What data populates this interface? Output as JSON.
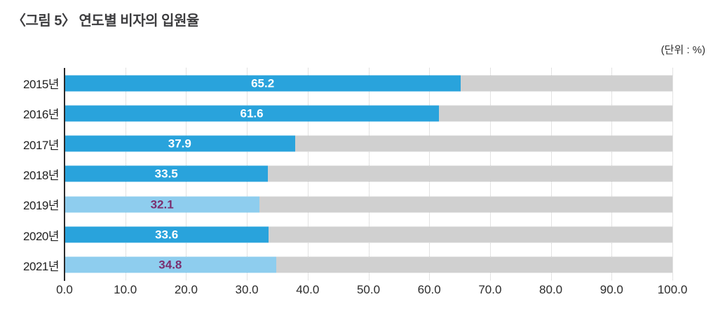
{
  "title": "〈그림 5〉 연도별 비자의 입원율",
  "unit_label": "(단위 : %)",
  "chart_data": {
    "type": "bar",
    "orientation": "horizontal",
    "title": "〈그림 5〉 연도별 비자의 입원율",
    "unit": "(단위 : %)",
    "categories": [
      "2015년",
      "2016년",
      "2017년",
      "2018년",
      "2019년",
      "2020년",
      "2021년"
    ],
    "values": [
      65.2,
      61.6,
      37.9,
      33.5,
      32.1,
      33.6,
      34.8
    ],
    "value_labels": [
      "65.2",
      "61.6",
      "37.9",
      "33.5",
      "32.1",
      "33.6",
      "34.8"
    ],
    "highlighted": [
      false,
      false,
      false,
      false,
      true,
      false,
      true
    ],
    "xlim": [
      0,
      100
    ],
    "x_ticks": [
      "0.0",
      "10.0",
      "20.0",
      "30.0",
      "40.0",
      "50.0",
      "60.0",
      "70.0",
      "80.0",
      "90.0",
      "100.0"
    ],
    "grid": "dotted-vertical",
    "legend": "none",
    "colors": {
      "bar": "#29a3dc",
      "bar_highlight": "#8ecdee",
      "track": "#d0d0d0",
      "value_text": "#ffffff",
      "value_text_highlight": "#7b2e6f",
      "gridline": "#c6c6c6",
      "axis_line": "#2a2a2a"
    }
  }
}
